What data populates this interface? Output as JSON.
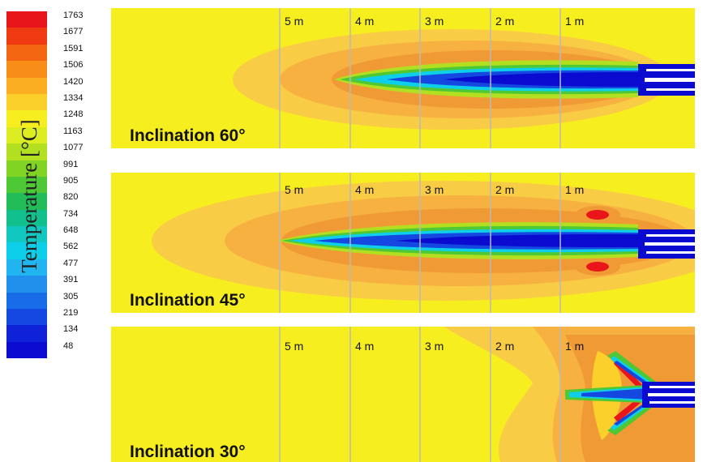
{
  "colorbar": {
    "title": "Temperature [°C]",
    "ticks": [
      "1763",
      "1677",
      "1591",
      "1506",
      "1420",
      "1334",
      "1248",
      "1163",
      "1077",
      "991",
      "905",
      "820",
      "734",
      "648",
      "562",
      "477",
      "391",
      "305",
      "219",
      "134",
      "48"
    ],
    "colors": [
      "#e8151a",
      "#f03a12",
      "#f46612",
      "#f88e18",
      "#fbae22",
      "#fcd02a",
      "#f7ee1f",
      "#dcee22",
      "#b2e020",
      "#82d424",
      "#4fc835",
      "#22bd58",
      "#12c08e",
      "#10c8c0",
      "#0ecfe9",
      "#20b4f0",
      "#2190ec",
      "#196ce8",
      "#1448e0",
      "#0f22d8",
      "#0a0ad0"
    ]
  },
  "distance_labels": [
    "5 m",
    "4 m",
    "3 m",
    "2 m",
    "1 m"
  ],
  "panels": [
    {
      "id": "60",
      "label": "Inclination 60°"
    },
    {
      "id": "45",
      "label": "Inclination 45°"
    },
    {
      "id": "30",
      "label": "Inclination 30°"
    }
  ],
  "palette": {
    "background": "#f7ee1f",
    "orange_light": "#f9cc45",
    "orange": "#f7b141",
    "orange_dark": "#f09a36",
    "red": "#e8151a",
    "green": "#4fc835",
    "cyan": "#0ecfe9",
    "blue": "#1448e0",
    "dark_blue": "#0a0ad0",
    "gridline": "#b9b9b9"
  }
}
